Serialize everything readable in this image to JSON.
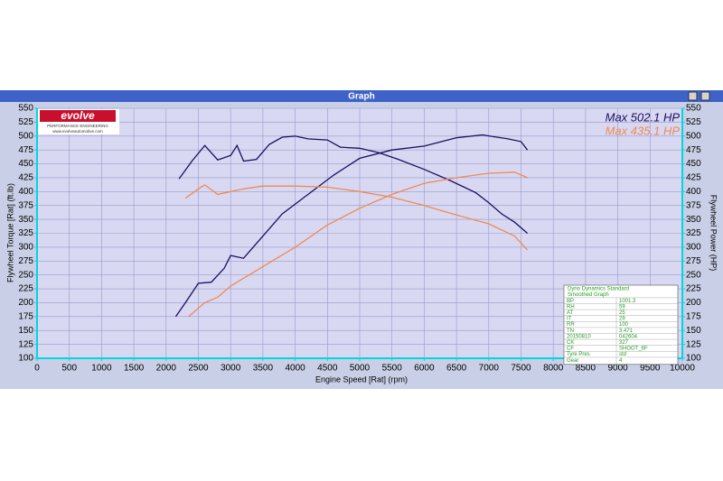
{
  "window": {
    "title": "Graph"
  },
  "logo": {
    "brand": "evolve",
    "tagline": "PERFORMANCE ENGINEERING",
    "url": "www.evolveautomotive.com"
  },
  "info_table": {
    "header": [
      "Dyno Dynamics Standard",
      "Smoothed Graph"
    ],
    "rows": [
      [
        "BP",
        "1001.3"
      ],
      [
        "RH",
        "59"
      ],
      [
        "AT",
        "25"
      ],
      [
        "IT",
        "29"
      ],
      [
        "RR",
        "100"
      ],
      [
        "TN",
        "3.471"
      ],
      [
        "20150810",
        "042604"
      ],
      [
        "CK",
        "327"
      ],
      [
        "CF",
        "SHOOT_6F"
      ],
      [
        "Tyre Pres",
        "std"
      ],
      [
        "Gear",
        "4"
      ]
    ]
  },
  "chart_data": {
    "type": "line",
    "xlabel": "Engine Speed [Rat] (rpm)",
    "ylabel": "Flywheel Torque [Rat] (ft.lb)",
    "y2label": "Flywheel Power (HP)",
    "xlim": [
      0,
      10000
    ],
    "xticks": [
      0,
      500,
      1000,
      1500,
      2000,
      2500,
      3000,
      3500,
      4000,
      4500,
      5000,
      5500,
      6000,
      6500,
      7000,
      7500,
      8000,
      8500,
      9000,
      9500,
      10000
    ],
    "ylim": [
      100,
      550
    ],
    "yticks": [
      100,
      125,
      150,
      175,
      200,
      225,
      250,
      275,
      300,
      325,
      350,
      375,
      400,
      425,
      450,
      475,
      500,
      525,
      550
    ],
    "y2lim": [
      100,
      550
    ],
    "y2ticks": [
      100,
      125,
      150,
      175,
      200,
      225,
      250,
      275,
      300,
      325,
      350,
      375,
      400,
      425,
      450,
      475,
      500,
      525,
      550
    ],
    "grid": true,
    "annotations": [
      {
        "text": "Max 502.1 HP",
        "color": "#1a0f5e"
      },
      {
        "text": "Max 435.1 HP",
        "color": "#f08a50"
      }
    ],
    "series": [
      {
        "color": "#1a0f5e",
        "x": [
          2200,
          2400,
          2600,
          2800,
          3000,
          3100,
          3200,
          3400,
          3600,
          3800,
          4000,
          4200,
          4500,
          4700,
          5000,
          5300,
          5600,
          6000,
          6400,
          6800,
          7000,
          7200,
          7400,
          7600
        ],
        "values": [
          423,
          455,
          483,
          457,
          465,
          483,
          455,
          458,
          485,
          498,
          500,
          495,
          493,
          480,
          478,
          470,
          458,
          440,
          420,
          398,
          380,
          360,
          345,
          325
        ]
      },
      {
        "color": "#1a0f5e",
        "axis": "y2",
        "x": [
          2150,
          2300,
          2500,
          2700,
          2900,
          3000,
          3200,
          3500,
          3800,
          4200,
          4600,
          5000,
          5500,
          6000,
          6500,
          6900,
          7300,
          7500,
          7600
        ],
        "values": [
          175,
          200,
          235,
          237,
          262,
          285,
          280,
          320,
          360,
          395,
          430,
          460,
          475,
          482,
          497,
          502,
          495,
          490,
          475
        ]
      },
      {
        "color": "#f08a50",
        "x": [
          2300,
          2500,
          2600,
          2800,
          3000,
          3200,
          3500,
          4000,
          4500,
          5000,
          5500,
          6000,
          6500,
          7000,
          7400,
          7600
        ],
        "values": [
          388,
          405,
          412,
          395,
          400,
          405,
          410,
          410,
          408,
          400,
          390,
          375,
          358,
          342,
          320,
          295
        ]
      },
      {
        "color": "#f08a50",
        "axis": "y2",
        "x": [
          2350,
          2600,
          2800,
          3000,
          3500,
          4000,
          4500,
          5000,
          5500,
          6000,
          6500,
          7000,
          7400,
          7600
        ],
        "values": [
          175,
          200,
          210,
          230,
          265,
          300,
          340,
          370,
          395,
          415,
          425,
          433,
          435,
          425
        ]
      }
    ]
  }
}
